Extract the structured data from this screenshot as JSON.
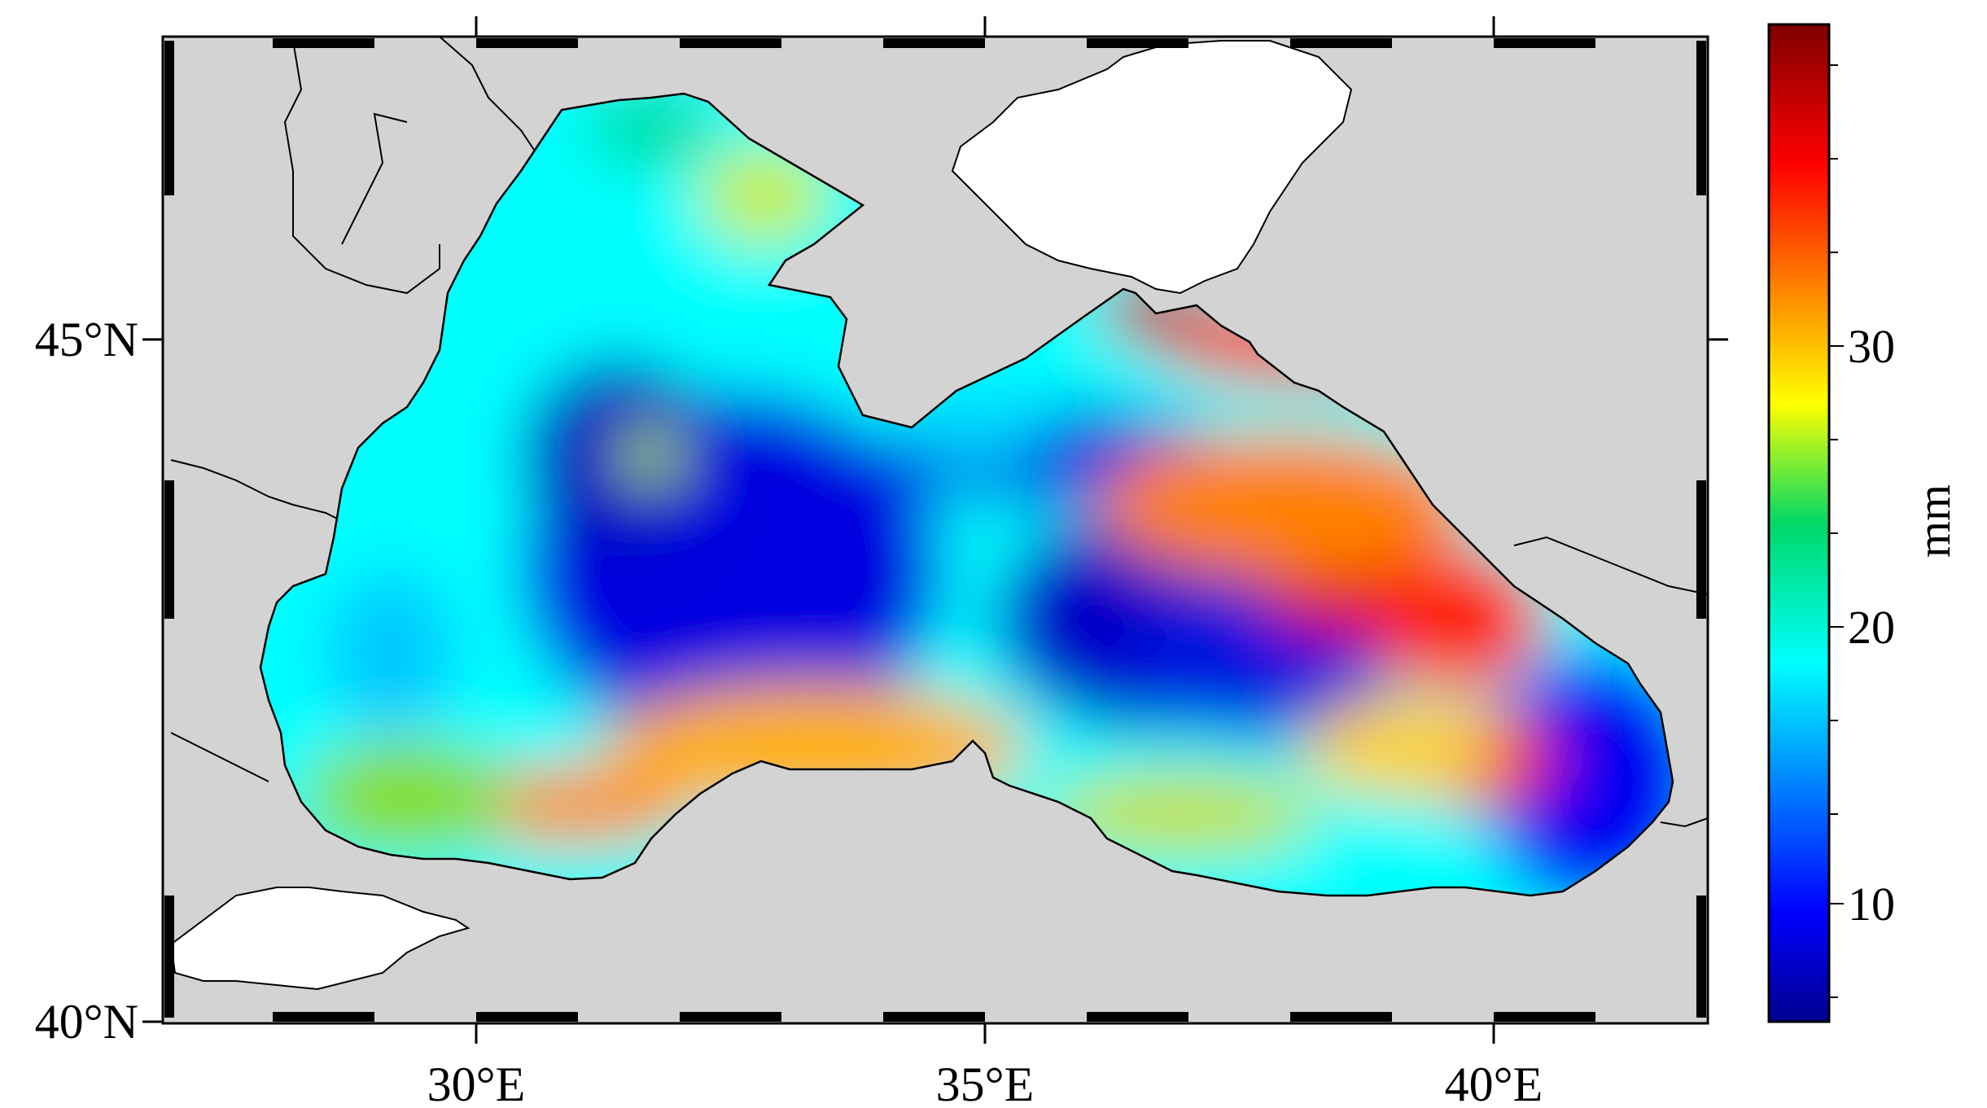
{
  "map": {
    "x_ticks": [
      "30°E",
      "35°E",
      "40°E"
    ],
    "y_ticks": [
      "45°N",
      "40°N"
    ],
    "colors": {
      "land": "#d3d3d3",
      "outside_region": "#ffffff",
      "coastline": "#000000",
      "frame_dark": "#000000",
      "frame_light": "#ffffff"
    }
  },
  "colorbar": {
    "unit": "mm",
    "tick_labels": [
      "10",
      "20",
      "30"
    ],
    "range": [
      7,
      38
    ],
    "colormap": "jet"
  }
}
